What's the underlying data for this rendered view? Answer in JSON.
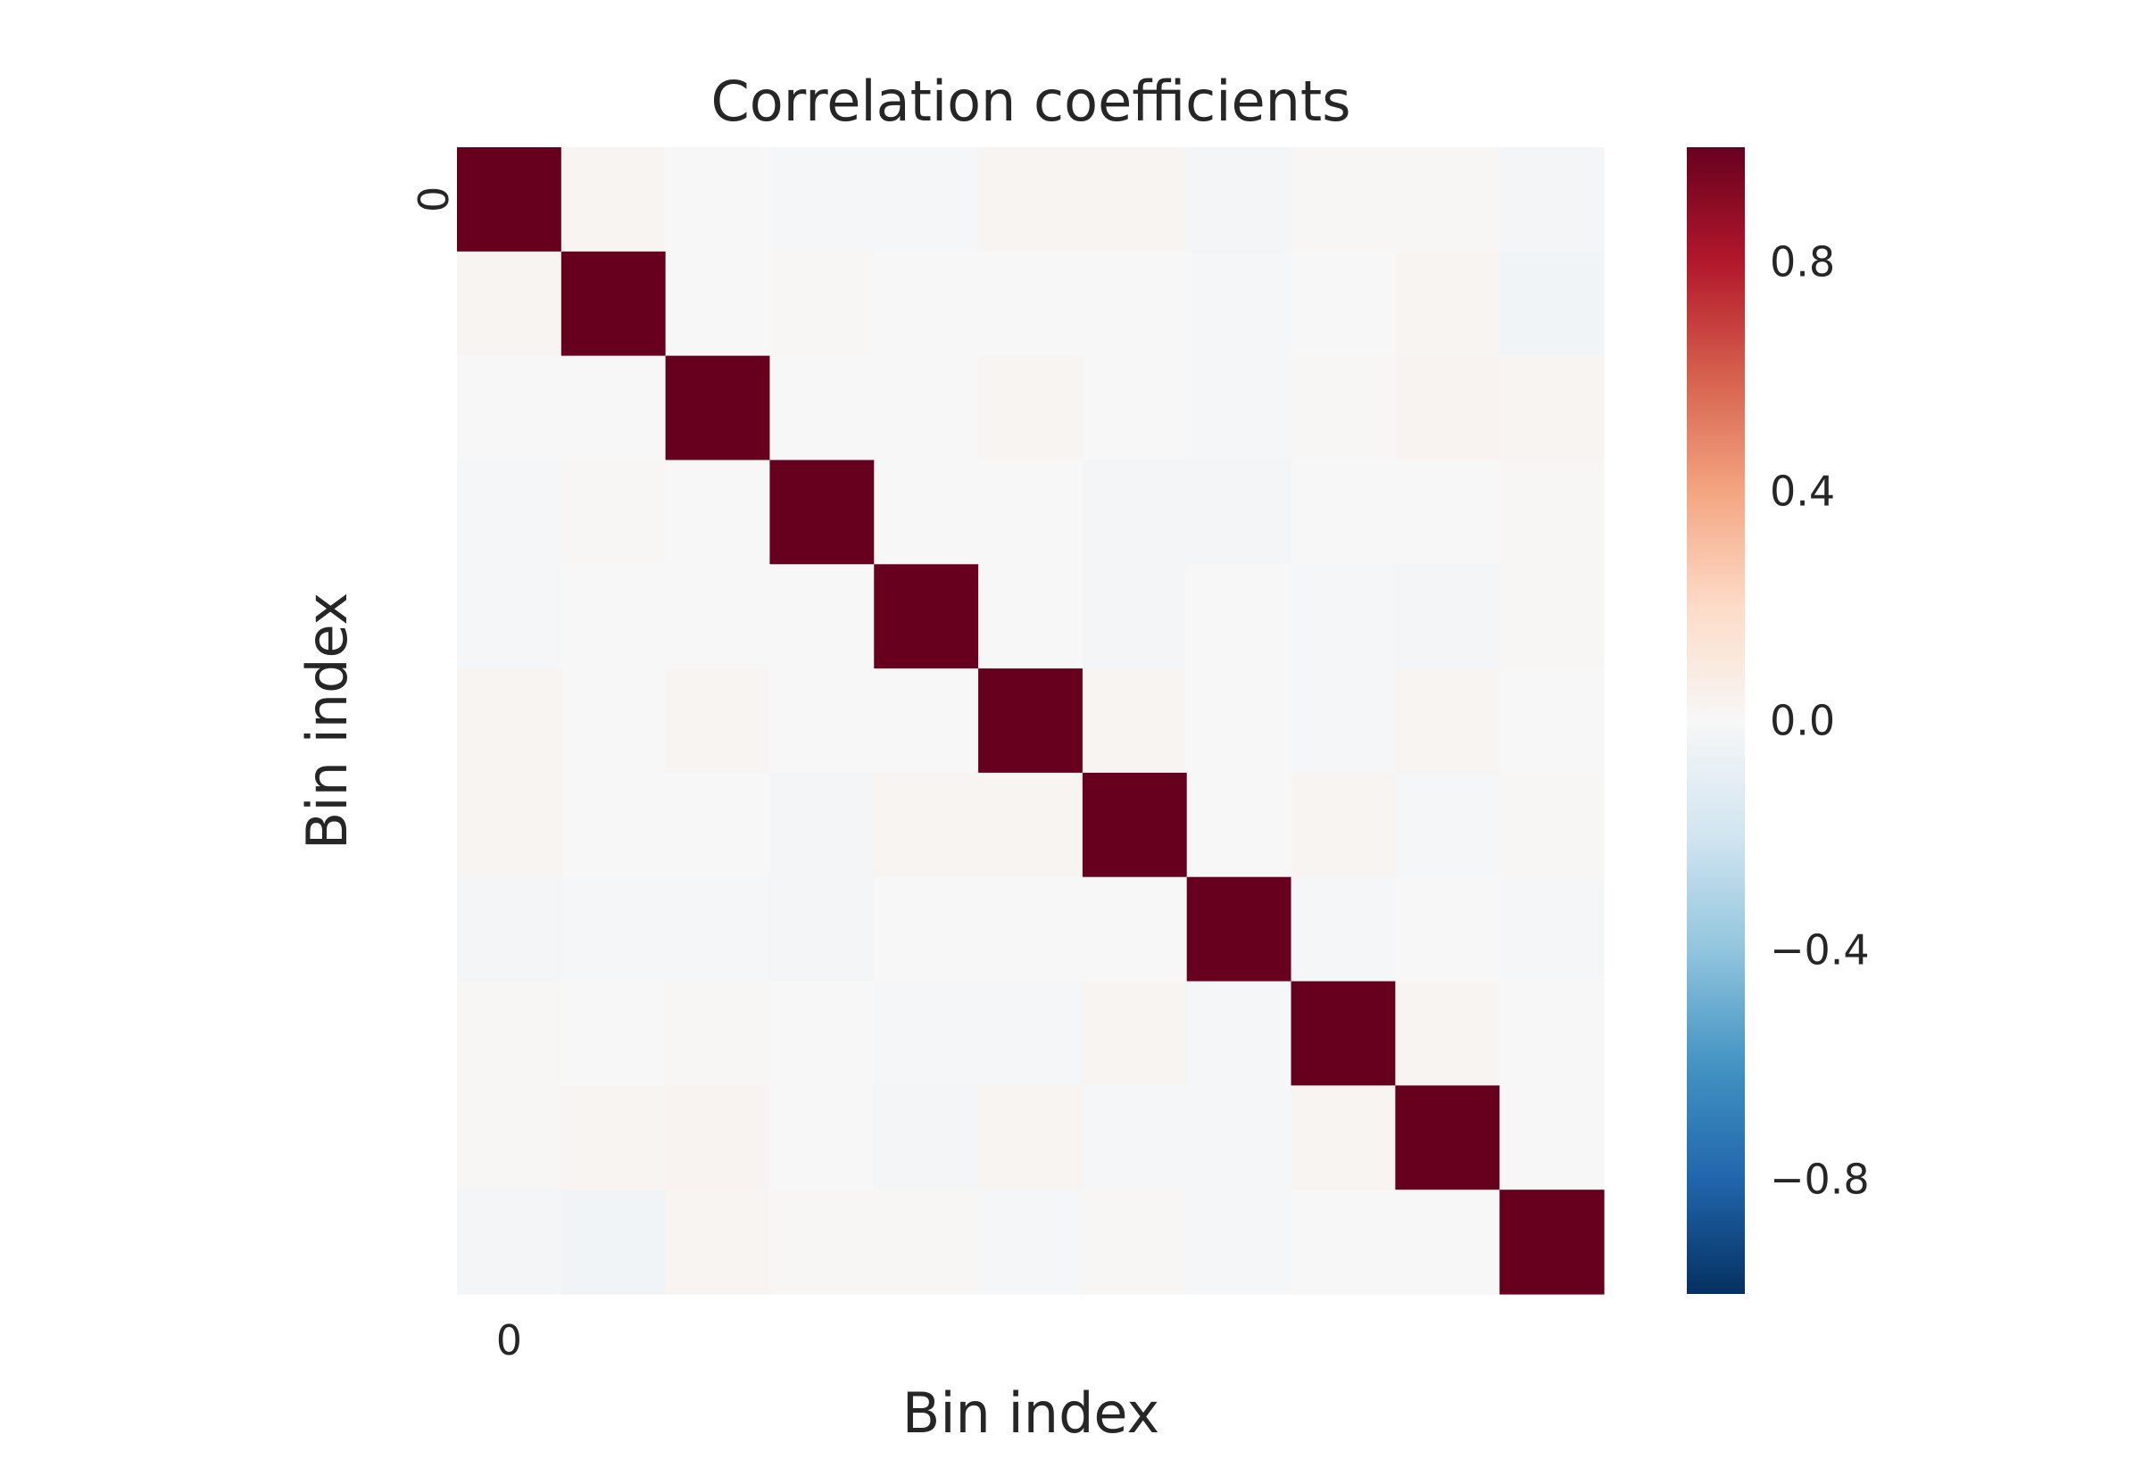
{
  "chart_data": {
    "type": "heatmap",
    "title": "Correlation coefficients",
    "xlabel": "Bin index",
    "ylabel": "Bin index",
    "x_tick_labels": [
      "0"
    ],
    "y_tick_labels": [
      "0"
    ],
    "colormap": "RdBu_r",
    "vmin": -1.0,
    "vmax": 1.0,
    "colorbar": {
      "ticks": [
        0.8,
        0.4,
        0.0,
        -0.4,
        -0.8
      ],
      "tick_labels": [
        "0.8",
        "0.4",
        "0.0",
        "−0.4",
        "−0.8"
      ]
    },
    "matrix": [
      [
        1.0,
        0.02,
        0.0,
        -0.01,
        -0.01,
        0.02,
        0.02,
        -0.02,
        0.01,
        0.01,
        -0.02
      ],
      [
        0.02,
        1.0,
        0.0,
        0.01,
        0.0,
        0.0,
        0.0,
        -0.01,
        0.0,
        0.02,
        -0.03
      ],
      [
        0.0,
        0.0,
        1.0,
        0.0,
        0.0,
        0.02,
        0.0,
        -0.01,
        0.01,
        0.03,
        0.02
      ],
      [
        -0.01,
        0.01,
        0.0,
        1.0,
        0.0,
        0.0,
        -0.02,
        -0.02,
        0.0,
        0.0,
        0.01
      ],
      [
        -0.01,
        0.0,
        0.0,
        0.0,
        1.0,
        0.0,
        -0.02,
        0.0,
        -0.01,
        -0.02,
        0.01
      ],
      [
        0.02,
        0.0,
        0.02,
        0.0,
        0.0,
        1.0,
        0.02,
        0.0,
        -0.01,
        0.02,
        0.0
      ],
      [
        0.02,
        0.0,
        0.0,
        -0.02,
        0.02,
        0.02,
        1.0,
        0.0,
        0.02,
        -0.01,
        0.01
      ],
      [
        -0.02,
        -0.01,
        -0.01,
        -0.02,
        0.0,
        0.0,
        0.0,
        1.0,
        -0.01,
        0.0,
        -0.01
      ],
      [
        0.01,
        0.0,
        0.01,
        0.0,
        -0.01,
        -0.01,
        0.02,
        -0.01,
        1.0,
        0.02,
        0.0
      ],
      [
        0.01,
        0.02,
        0.03,
        0.0,
        -0.02,
        0.02,
        -0.01,
        -0.01,
        0.02,
        1.0,
        0.0
      ],
      [
        -0.02,
        -0.03,
        0.02,
        0.01,
        0.01,
        -0.01,
        0.01,
        -0.01,
        0.0,
        0.0,
        1.0
      ]
    ]
  }
}
